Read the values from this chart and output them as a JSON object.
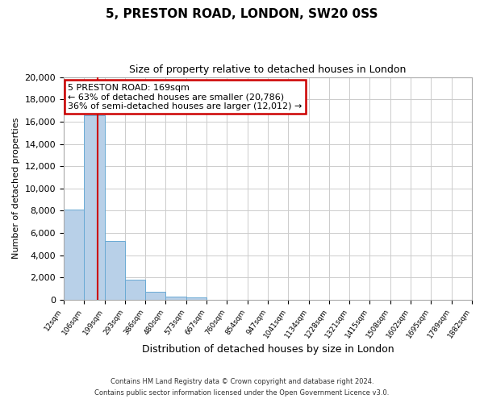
{
  "title": "5, PRESTON ROAD, LONDON, SW20 0SS",
  "subtitle": "Size of property relative to detached houses in London",
  "xlabel": "Distribution of detached houses by size in London",
  "ylabel": "Number of detached properties",
  "bin_labels": [
    "12sqm",
    "106sqm",
    "199sqm",
    "293sqm",
    "386sqm",
    "480sqm",
    "573sqm",
    "667sqm",
    "760sqm",
    "854sqm",
    "947sqm",
    "1041sqm",
    "1134sqm",
    "1228sqm",
    "1321sqm",
    "1415sqm",
    "1508sqm",
    "1602sqm",
    "1695sqm",
    "1789sqm",
    "1882sqm"
  ],
  "bar_values": [
    8100,
    16600,
    5300,
    1800,
    750,
    300,
    250,
    0,
    0,
    0,
    0,
    0,
    0,
    0,
    0,
    0,
    0,
    0,
    0,
    0
  ],
  "bar_color": "#b8d0e8",
  "bar_edgecolor": "#6aaad4",
  "vline_color": "#cc0000",
  "annotation_title": "5 PRESTON ROAD: 169sqm",
  "annotation_line1": "← 63% of detached houses are smaller (20,786)",
  "annotation_line2": "36% of semi-detached houses are larger (12,012) →",
  "annotation_box_color": "#ffffff",
  "annotation_box_edgecolor": "#cc0000",
  "ylim": [
    0,
    20000
  ],
  "yticks": [
    0,
    2000,
    4000,
    6000,
    8000,
    10000,
    12000,
    14000,
    16000,
    18000,
    20000
  ],
  "footer1": "Contains HM Land Registry data © Crown copyright and database right 2024.",
  "footer2": "Contains public sector information licensed under the Open Government Licence v3.0.",
  "background_color": "#ffffff",
  "grid_color": "#cccccc"
}
